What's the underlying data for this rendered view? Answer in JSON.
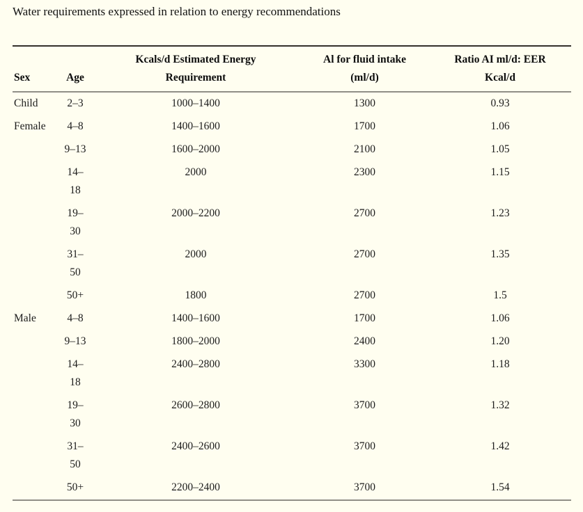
{
  "title": "Water requirements expressed in relation to energy recommendations",
  "colors": {
    "background": "#fffef0",
    "top_rule": "#34302b",
    "gray_rule": "#908e86",
    "text": "#1c1c1c"
  },
  "table": {
    "columns": [
      {
        "id": "sex",
        "label_line1": "",
        "label_line2": "Sex"
      },
      {
        "id": "age",
        "label_line1": "",
        "label_line2": "Age"
      },
      {
        "id": "eer",
        "label_line1": "Kcals/d Estimated Energy",
        "label_line2": "Requirement"
      },
      {
        "id": "ai",
        "label_line1": "Al for fluid intake",
        "label_line2": "(ml/d)"
      },
      {
        "id": "ratio",
        "label_line1": "Ratio AI ml/d: EER",
        "label_line2": "Kcal/d"
      }
    ],
    "rows": [
      {
        "sex": "Child",
        "age": "2–3",
        "age_lines": [
          "2–3"
        ],
        "eer": "1000–1400",
        "ai": "1300",
        "ratio": "0.93"
      },
      {
        "sex": "Female",
        "age": "4–8",
        "age_lines": [
          "4–8"
        ],
        "eer": "1400–1600",
        "ai": "1700",
        "ratio": "1.06"
      },
      {
        "sex": "",
        "age": "9–13",
        "age_lines": [
          "9–13"
        ],
        "eer": "1600–2000",
        "ai": "2100",
        "ratio": "1.05"
      },
      {
        "sex": "",
        "age": "14–18",
        "age_lines": [
          "14–",
          "18"
        ],
        "eer": "2000",
        "ai": "2300",
        "ratio": "1.15"
      },
      {
        "sex": "",
        "age": "19–30",
        "age_lines": [
          "19–",
          "30"
        ],
        "eer": "2000–2200",
        "ai": "2700",
        "ratio": "1.23"
      },
      {
        "sex": "",
        "age": "31–50",
        "age_lines": [
          "31–",
          "50"
        ],
        "eer": "2000",
        "ai": "2700",
        "ratio": "1.35"
      },
      {
        "sex": "",
        "age": "50+",
        "age_lines": [
          "50+"
        ],
        "eer": "1800",
        "ai": "2700",
        "ratio": "1.5"
      },
      {
        "sex": "Male",
        "age": "4–8",
        "age_lines": [
          "4–8"
        ],
        "eer": "1400–1600",
        "ai": "1700",
        "ratio": "1.06"
      },
      {
        "sex": "",
        "age": "9–13",
        "age_lines": [
          "9–13"
        ],
        "eer": "1800–2000",
        "ai": "2400",
        "ratio": "1.20"
      },
      {
        "sex": "",
        "age": "14–18",
        "age_lines": [
          "14–",
          "18"
        ],
        "eer": "2400–2800",
        "ai": "3300",
        "ratio": "1.18"
      },
      {
        "sex": "",
        "age": "19–30",
        "age_lines": [
          "19–",
          "30"
        ],
        "eer": "2600–2800",
        "ai": "3700",
        "ratio": "1.32"
      },
      {
        "sex": "",
        "age": "31–50",
        "age_lines": [
          "31–",
          "50"
        ],
        "eer": "2400–2600",
        "ai": "3700",
        "ratio": "1.42"
      },
      {
        "sex": "",
        "age": "50+",
        "age_lines": [
          "50+"
        ],
        "eer": "2200–2400",
        "ai": "3700",
        "ratio": "1.54"
      }
    ]
  },
  "chart_data": {
    "type": "table",
    "title": "Water requirements expressed in relation to energy recommendations",
    "columns": [
      "Sex",
      "Age",
      "Kcals/d Estimated Energy Requirement",
      "Al for fluid intake (ml/d)",
      "Ratio AI ml/d: EER Kcal/d"
    ],
    "rows": [
      [
        "Child",
        "2–3",
        "1000–1400",
        "1300",
        "0.93"
      ],
      [
        "Female",
        "4–8",
        "1400–1600",
        "1700",
        "1.06"
      ],
      [
        "",
        "9–13",
        "1600–2000",
        "2100",
        "1.05"
      ],
      [
        "",
        "14–18",
        "2000",
        "2300",
        "1.15"
      ],
      [
        "",
        "19–30",
        "2000–2200",
        "2700",
        "1.23"
      ],
      [
        "",
        "31–50",
        "2000",
        "2700",
        "1.35"
      ],
      [
        "",
        "50+",
        "1800",
        "2700",
        "1.5"
      ],
      [
        "Male",
        "4–8",
        "1400–1600",
        "1700",
        "1.06"
      ],
      [
        "",
        "9–13",
        "1800–2000",
        "2400",
        "1.20"
      ],
      [
        "",
        "14–18",
        "2400–2800",
        "3300",
        "1.18"
      ],
      [
        "",
        "19–30",
        "2600–2800",
        "3700",
        "1.32"
      ],
      [
        "",
        "31–50",
        "2400–2600",
        "3700",
        "1.42"
      ],
      [
        "",
        "50+",
        "2200–2400",
        "3700",
        "1.54"
      ]
    ]
  }
}
